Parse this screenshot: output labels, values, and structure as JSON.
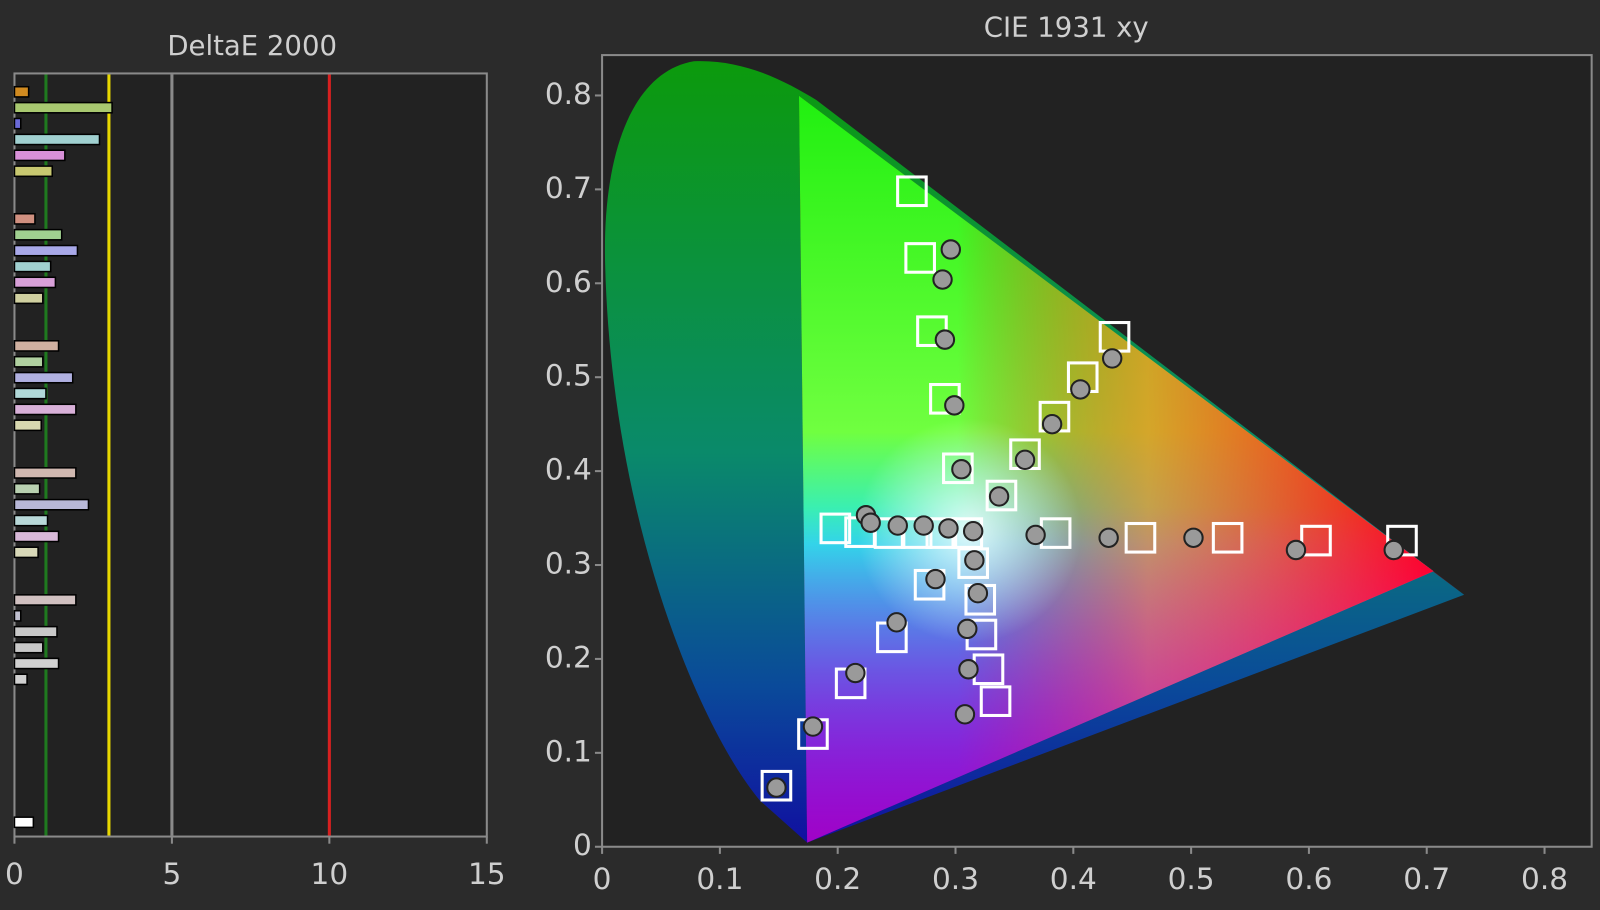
{
  "chart_data": [
    {
      "type": "bar",
      "orientation": "horizontal",
      "title": "DeltaE 2000",
      "categories": [
        null,
        null,
        null,
        null,
        null,
        null,
        null,
        null,
        null,
        null,
        null,
        null,
        null,
        null,
        null,
        null,
        null,
        null,
        null,
        null,
        null,
        null,
        null,
        null,
        null,
        null,
        null,
        null,
        null,
        null,
        null,
        null,
        null,
        null,
        null,
        null,
        null,
        null,
        null,
        null,
        null,
        null,
        null,
        null,
        null,
        null,
        null
      ],
      "values": [
        0.45,
        3.1,
        0.2,
        2.7,
        1.6,
        1.2,
        null,
        null,
        0.65,
        1.5,
        2.0,
        1.15,
        1.3,
        0.9,
        null,
        null,
        1.4,
        0.9,
        1.85,
        1.0,
        1.95,
        0.85,
        null,
        null,
        1.95,
        0.8,
        2.35,
        1.05,
        1.4,
        0.75,
        null,
        null,
        1.95,
        0.2,
        1.35,
        0.9,
        1.4,
        0.4,
        null,
        null,
        null,
        null,
        null,
        null,
        null,
        null,
        0.6
      ],
      "colors": [
        "#d08a20",
        "#a8c870",
        "#6a6ad8",
        "#a0d0d0",
        "#d890d8",
        "#c8c870",
        null,
        null,
        "#d09080",
        "#a0d090",
        "#a8a8e8",
        "#a0d0d0",
        "#d8a0d8",
        "#d0d0a0",
        null,
        null,
        "#d0b0a0",
        "#b0d0a0",
        "#b0b0e0",
        "#b0d8d8",
        "#d8b0d8",
        "#d8d8b0",
        null,
        null,
        "#d0b8b0",
        "#b8d0b0",
        "#b8b8d8",
        "#b8d8d8",
        "#d8b8d8",
        "#d8d8b8",
        null,
        null,
        "#d0c0c0",
        "#c0c0d0",
        "#c8c8c8",
        "#c8c8c8",
        "#d0d0d0",
        "#d0d0d0",
        null,
        null,
        null,
        null,
        null,
        null,
        null,
        null,
        "#ffffff"
      ],
      "xlim": [
        0,
        15
      ],
      "xticks": [
        0,
        5,
        10,
        15
      ],
      "reference_lines": [
        {
          "value": 1,
          "color": "#1f7a1f"
        },
        {
          "value": 3,
          "color": "#e8d800"
        },
        {
          "value": 5,
          "color": "#8a8a8a"
        },
        {
          "value": 10,
          "color": "#d82020"
        }
      ]
    },
    {
      "type": "scatter",
      "title": "CIE 1931 xy",
      "xlim": [
        0,
        0.84
      ],
      "ylim": [
        0,
        0.843
      ],
      "xticks": [
        0,
        0.1,
        0.2,
        0.3,
        0.4,
        0.5,
        0.6,
        0.7,
        0.8
      ],
      "yticks": [
        0,
        0.1,
        0.2,
        0.3,
        0.4,
        0.5,
        0.6,
        0.7,
        0.8
      ],
      "series": [
        {
          "marker": "square",
          "color": "#ffffff",
          "x": [
            0.263,
            0.27,
            0.28,
            0.291,
            0.302,
            0.339,
            0.359,
            0.384,
            0.408,
            0.435,
            0.31,
            0.385,
            0.457,
            0.531,
            0.606,
            0.679,
            0.198,
            0.219,
            0.244,
            0.267,
            0.288,
            0.315,
            0.321,
            0.322,
            0.328,
            0.334,
            0.278,
            0.246,
            0.211,
            0.179,
            0.148
          ],
          "y": [
            0.698,
            0.627,
            0.549,
            0.477,
            0.403,
            0.374,
            0.418,
            0.458,
            0.5,
            0.543,
            0.334,
            0.334,
            0.329,
            0.329,
            0.326,
            0.326,
            0.339,
            0.335,
            0.334,
            0.334,
            0.334,
            0.302,
            0.263,
            0.226,
            0.189,
            0.155,
            0.279,
            0.223,
            0.174,
            0.12,
            0.065
          ]
        },
        {
          "marker": "circle",
          "color": "#9a9a9a",
          "x": [
            0.296,
            0.289,
            0.291,
            0.299,
            0.305,
            0.337,
            0.359,
            0.382,
            0.406,
            0.433,
            0.368,
            0.43,
            0.502,
            0.589,
            0.672,
            0.224,
            0.228,
            0.251,
            0.273,
            0.294,
            0.315,
            0.316,
            0.319,
            0.31,
            0.311,
            0.308,
            0.283,
            0.25,
            0.215,
            0.179,
            0.148
          ],
          "y": [
            0.636,
            0.604,
            0.54,
            0.47,
            0.402,
            0.373,
            0.412,
            0.45,
            0.487,
            0.52,
            0.332,
            0.329,
            0.329,
            0.316,
            0.316,
            0.353,
            0.345,
            0.342,
            0.342,
            0.339,
            0.336,
            0.305,
            0.27,
            0.232,
            0.189,
            0.141,
            0.285,
            0.239,
            0.185,
            0.128,
            0.063
          ]
        }
      ]
    }
  ]
}
